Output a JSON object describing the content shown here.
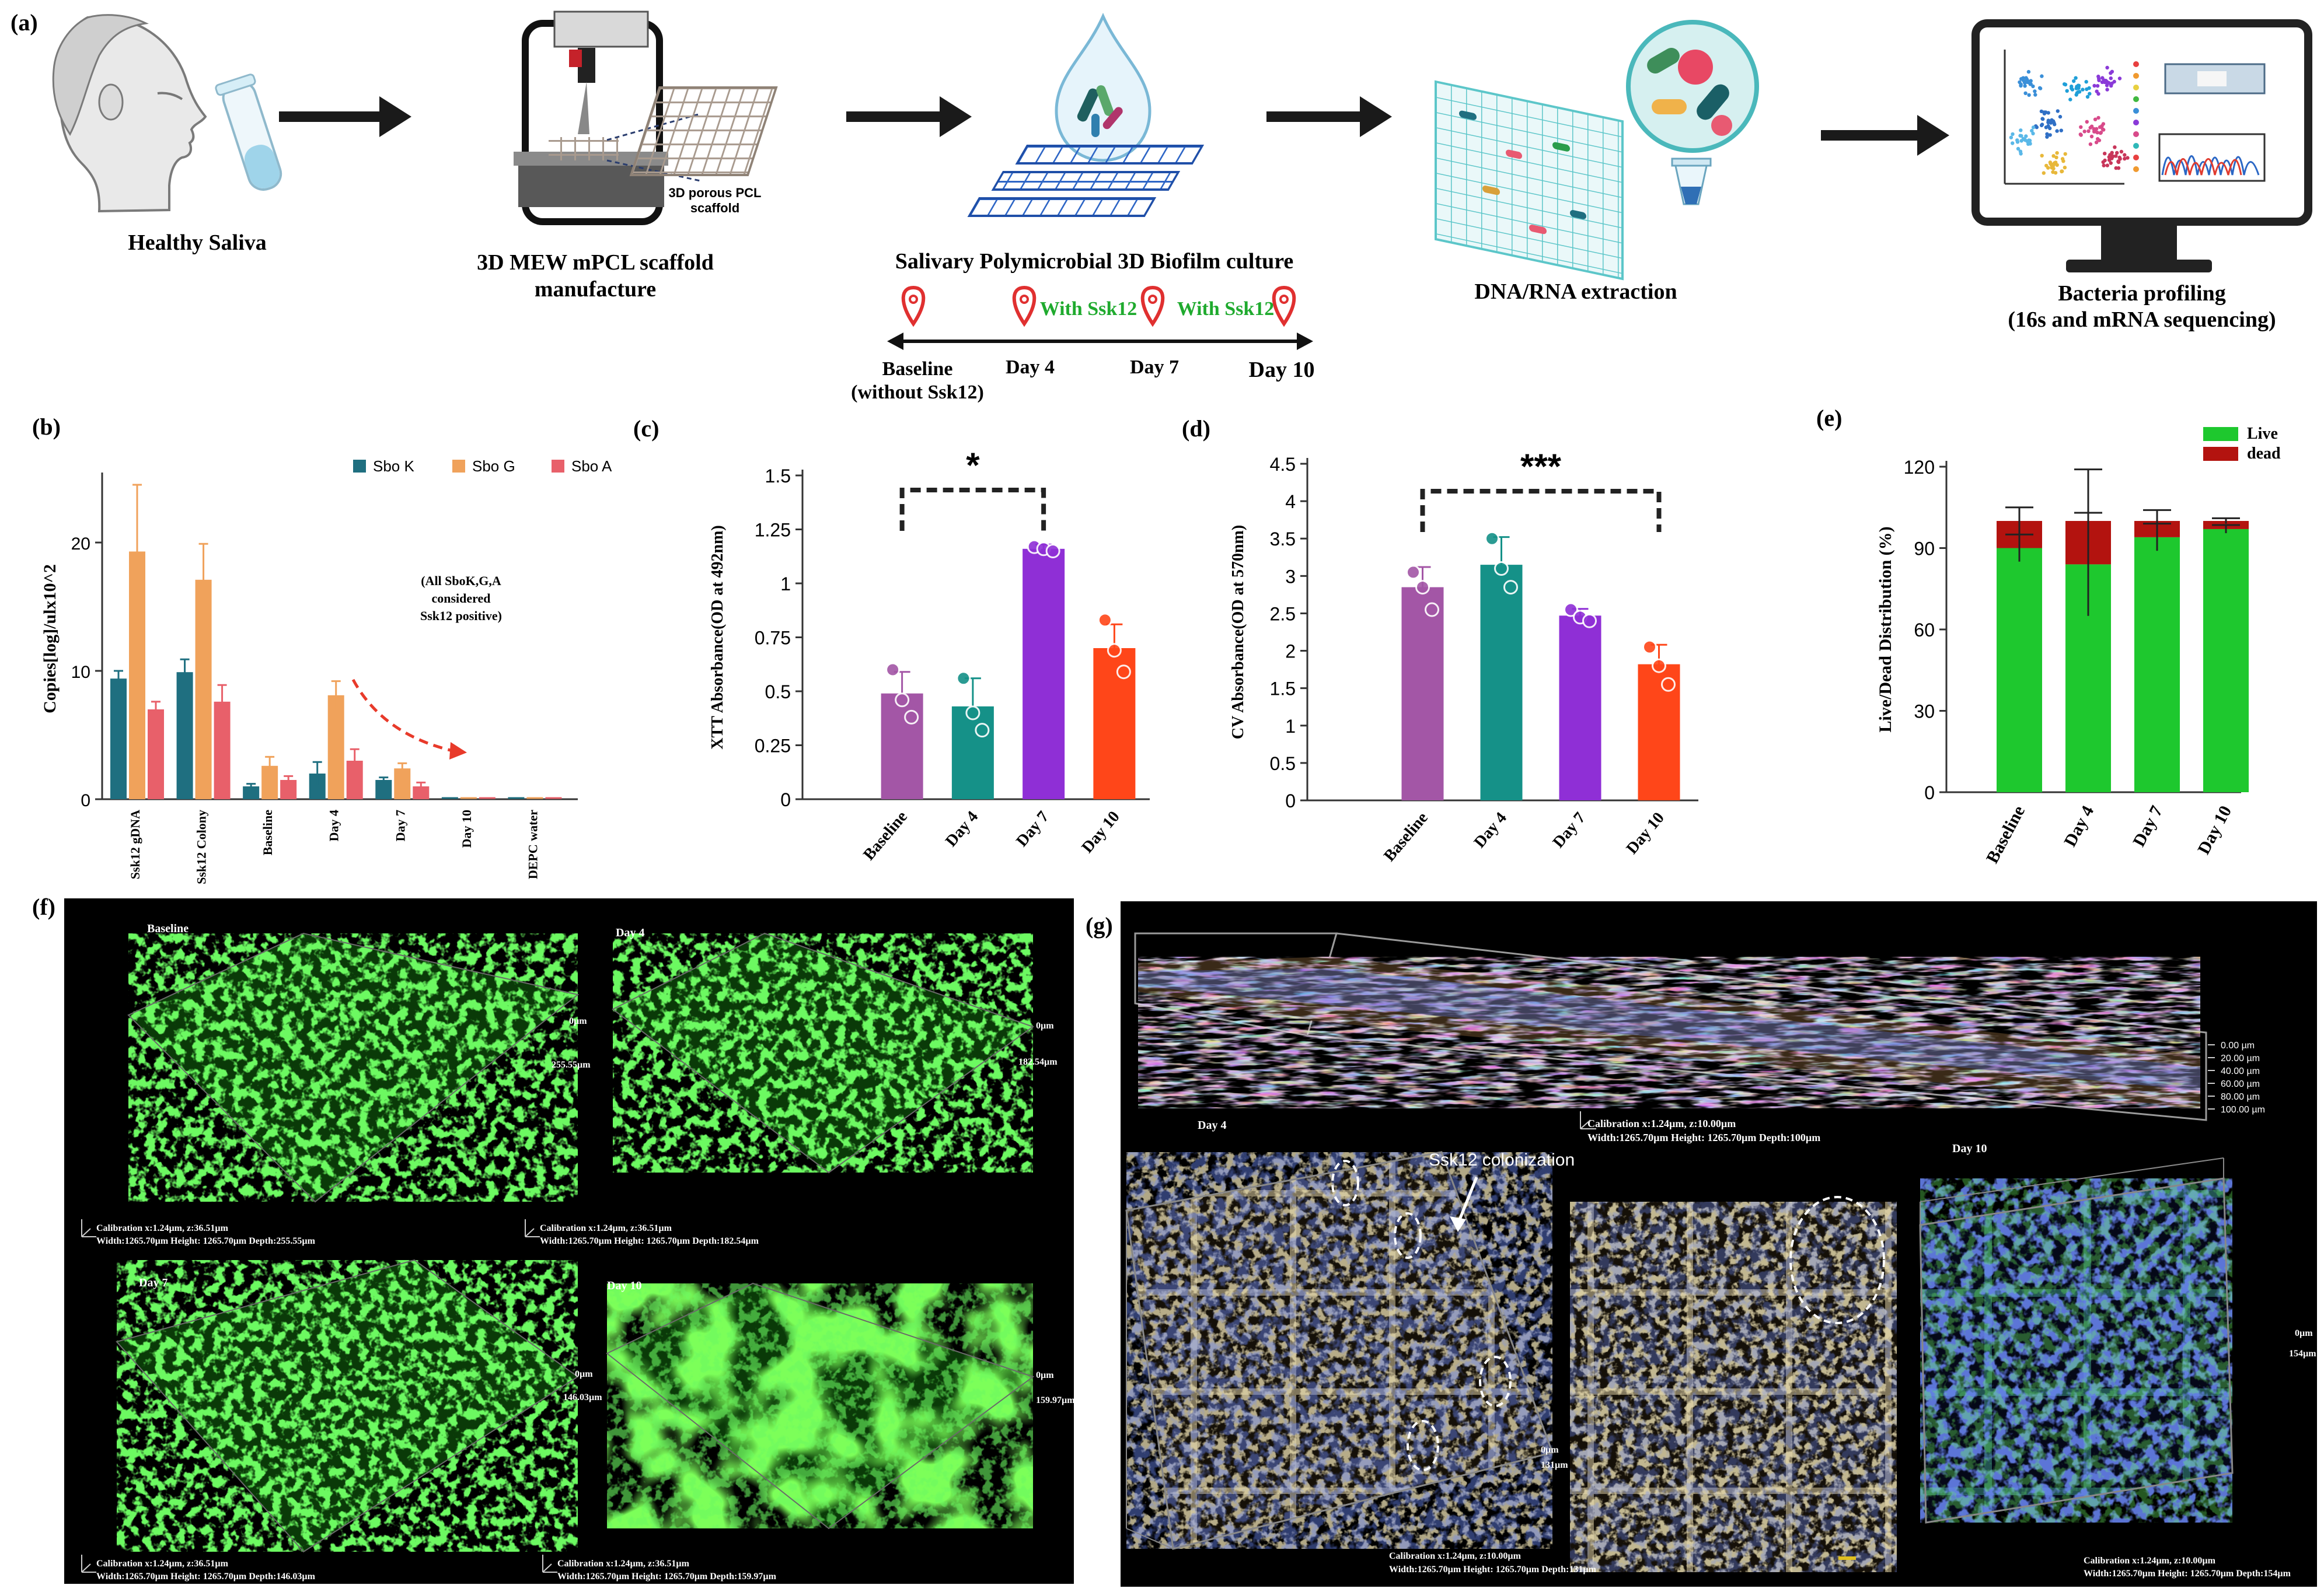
{
  "panel_labels": {
    "a": "(a)",
    "b": "(b)",
    "c": "(c)",
    "d": "(d)",
    "e": "(e)",
    "f": "(f)",
    "g": "(g)"
  },
  "workflow": {
    "step1": "Healthy Saliva",
    "step2_line1": "3D MEW mPCL scaffold",
    "step2_line2": "manufacture",
    "scaffold_callout_line1": "3D porous PCL",
    "scaffold_callout_line2": "scaffold",
    "step3": "Salivary Polymicrobial 3D Biofilm culture",
    "step4": "DNA/RNA extraction",
    "step5_line1": "Bacteria profiling",
    "step5_line2": "(16s and mRNA sequencing)",
    "timeline": {
      "baseline_line1": "Baseline",
      "baseline_line2": "(without Ssk12)",
      "day4": "Day 4",
      "day7": "Day 7",
      "day10": "Day 10",
      "with1": "With Ssk12",
      "with2": "With Ssk12",
      "with_color": "#1faa2e",
      "pin_color": "#e03030"
    }
  },
  "chart_data": [
    {
      "id": "b",
      "type": "bar",
      "ylabel": "Copies[log]/ulx10^2",
      "categories": [
        "Ssk12 gDNA",
        "Ssk12 Colony",
        "Baseline",
        "Day 4",
        "Day 7",
        "Day 10",
        "DEPC water"
      ],
      "series": [
        {
          "name": "Sbo K",
          "color": "#1f6f80",
          "values": [
            9.4,
            9.9,
            1.0,
            2.0,
            1.5,
            0,
            0
          ],
          "errors": [
            0.6,
            1.0,
            0.2,
            0.9,
            0.2,
            0,
            0
          ]
        },
        {
          "name": "Sbo G",
          "color": "#f0a25b",
          "values": [
            19.3,
            17.1,
            2.6,
            8.1,
            2.4,
            0,
            0
          ],
          "errors": [
            5.2,
            2.8,
            0.7,
            1.1,
            0.4,
            0,
            0
          ]
        },
        {
          "name": "Sbo A",
          "color": "#e8606a",
          "values": [
            7.0,
            7.6,
            1.5,
            3.0,
            1.0,
            0,
            0
          ],
          "errors": [
            0.6,
            1.3,
            0.3,
            0.9,
            0.3,
            0,
            0
          ]
        }
      ],
      "ylim": [
        0,
        25
      ],
      "yticks": [
        0,
        10,
        20
      ],
      "annotation": [
        "(All SboK,G,A",
        "considered",
        "Ssk12 positive)"
      ],
      "legend": "top-right"
    },
    {
      "id": "c",
      "type": "bar",
      "ylabel": "XTT Absorbance(OD at 492nm)",
      "categories": [
        "Baseline",
        "Day 4",
        "Day 7",
        "Day 10"
      ],
      "values": [
        0.49,
        0.43,
        1.16,
        0.7
      ],
      "errors": [
        0.1,
        0.13,
        0.02,
        0.11
      ],
      "points": [
        [
          0.6,
          0.46,
          0.38
        ],
        [
          0.56,
          0.4,
          0.32
        ],
        [
          1.17,
          1.16,
          1.15
        ],
        [
          0.83,
          0.69,
          0.59
        ]
      ],
      "colors": [
        "#a356a6",
        "#159188",
        "#8f2fd6",
        "#ff4619"
      ],
      "ylim": [
        0,
        1.5
      ],
      "yticks": [
        0,
        0.25,
        0.5,
        0.75,
        1,
        1.25,
        1.5
      ],
      "ytick_labels": [
        "0",
        "0.25",
        "0.5",
        "0.75",
        "1",
        "1.25",
        "1.5"
      ],
      "significance": "*"
    },
    {
      "id": "d",
      "type": "bar",
      "ylabel": "CV Absorbance(OD at 570nm)",
      "categories": [
        "Baseline",
        "Day 4",
        "Day 7",
        "Day 10"
      ],
      "values": [
        2.85,
        3.15,
        2.47,
        1.82
      ],
      "errors": [
        0.27,
        0.37,
        0.09,
        0.26
      ],
      "points": [
        [
          3.05,
          2.85,
          2.55
        ],
        [
          3.5,
          3.1,
          2.85
        ],
        [
          2.55,
          2.45,
          2.4
        ],
        [
          2.05,
          1.8,
          1.55
        ]
      ],
      "colors": [
        "#a356a6",
        "#159188",
        "#8f2fd6",
        "#ff4619"
      ],
      "ylim": [
        0,
        4.5
      ],
      "yticks": [
        0,
        0.5,
        1,
        1.5,
        2,
        2.5,
        3,
        3.5,
        4,
        4.5
      ],
      "ytick_labels": [
        "0",
        "0.5",
        "1",
        "1.5",
        "2",
        "2.5",
        "3",
        "3.5",
        "4",
        "4.5"
      ],
      "significance": "***"
    },
    {
      "id": "e",
      "type": "bar",
      "ylabel": "Live/Dead Distribution  (%)",
      "categories": [
        "Baseline",
        "Day 4",
        "Day 7",
        "Day 10"
      ],
      "series": [
        {
          "name": "Live",
          "color": "#1ec82e",
          "values": [
            90,
            84,
            94,
            97
          ],
          "errors": [
            5,
            19,
            5,
            1.5
          ]
        },
        {
          "name": "dead",
          "color": "#b3130f",
          "values": [
            10,
            16,
            6,
            3
          ],
          "errors": [
            5,
            19,
            4,
            1
          ]
        }
      ],
      "ylim": [
        0,
        120
      ],
      "yticks": [
        0,
        30,
        60,
        90,
        120
      ],
      "legend": "top-right"
    }
  ],
  "panel_f": {
    "tiles": [
      {
        "label": "Baseline",
        "depth_top": "0µm",
        "depth_bottom": "255.55µm",
        "cal": "Calibration x:1.24µm, z:36.51µm",
        "dims": "Width:1265.70µm Height: 1265.70µm Depth:255.55µm"
      },
      {
        "label": "Day 4",
        "depth_top": "0µm",
        "depth_bottom": "182.54µm",
        "cal": "Calibration x:1.24µm, z:36.51µm",
        "dims": "Width:1265.70µm Height: 1265.70µm Depth:182.54µm"
      },
      {
        "label": "Day 7",
        "depth_top": "0µm",
        "depth_bottom": "146.03µm",
        "cal": "Calibration x:1.24µm, z:36.51µm",
        "dims": "Width:1265.70µm Height: 1265.70µm Depth:146.03µm"
      },
      {
        "label": "Day 10",
        "depth_top": "0µm",
        "depth_bottom": "159.97µm",
        "cal": "Calibration x:1.24µm, z:36.51µm",
        "dims": "Width:1265.70µm Height: 1265.70µm Depth:159.97µm"
      }
    ]
  },
  "panel_g": {
    "top_cal": "Calibration x:1.24µm, z:10.00µm",
    "top_dims": "Width:1265.70µm Height: 1265.70µm Depth:100µm",
    "depth_scale": [
      "0.00 µm",
      "20.00 µm",
      "40.00 µm",
      "60.00 µm",
      "80.00 µm",
      "100.00 µm"
    ],
    "day4": "Day 4",
    "day10": "Day 10",
    "colonization": "Ssk12 colonization",
    "left_depth_top": "0µm",
    "left_depth_bottom": "131µm",
    "left_cal": "Calibration x:1.24µm, z:10.00µm",
    "left_dims": "Width:1265.70µm Height: 1265.70µm Depth:131µm",
    "right_depth_top": "0µm",
    "right_depth_bottom": "154µm",
    "right_cal": "Calibration x:1.24µm, z:10.00µm",
    "right_dims": "Width:1265.70µm Height: 1265.70µm Depth:154µm"
  },
  "colors": {
    "arrow": "#1a1a1a",
    "sig_line": "#222222",
    "red_arrow": "#e83a2a"
  }
}
